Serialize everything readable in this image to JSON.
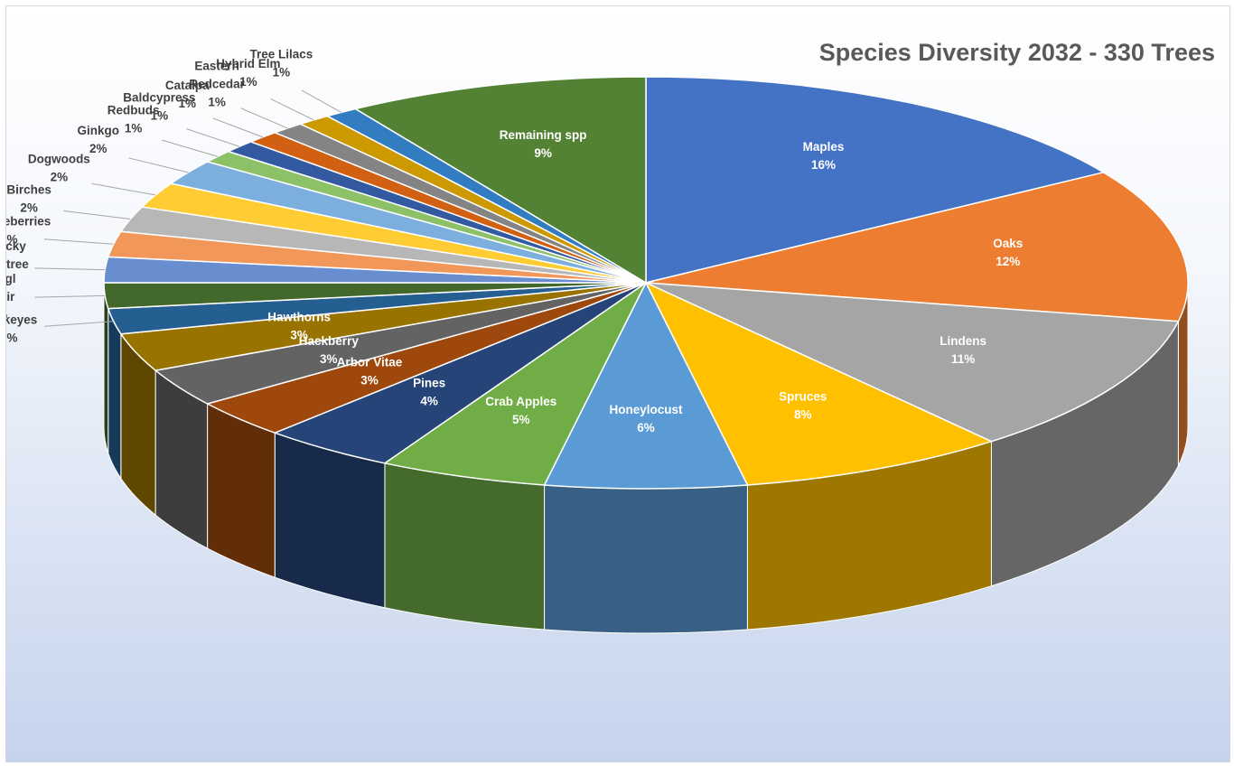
{
  "chart_data": {
    "type": "pie",
    "style": "3d-exploded-perspective",
    "title": "Species Diversity 2032 - 330 Trees",
    "legend": "none",
    "slices": [
      {
        "label": "Maples",
        "value_text": "16%",
        "value": 16,
        "color": "#4472c4",
        "label_position": "inside"
      },
      {
        "label": "Oaks",
        "value_text": "12%",
        "value": 12,
        "color": "#ed7d31",
        "label_position": "inside"
      },
      {
        "label": "Lindens",
        "value_text": "11%",
        "value": 11,
        "color": "#a5a5a5",
        "label_position": "inside"
      },
      {
        "label": "Spruces",
        "value_text": "8%",
        "value": 8,
        "color": "#ffc000",
        "label_position": "inside"
      },
      {
        "label": "Honeylocust",
        "value_text": "6%",
        "value": 6,
        "color": "#5b9bd5",
        "label_position": "inside"
      },
      {
        "label": "Crab Apples",
        "value_text": "5%",
        "value": 5,
        "color": "#70ad47",
        "label_position": "inside"
      },
      {
        "label": "Pines",
        "value_text": "4%",
        "value": 4,
        "color": "#264478",
        "label_position": "inside"
      },
      {
        "label": "Arbor Vitae",
        "value_text": "3%",
        "value": 3,
        "color": "#9e480e",
        "label_position": "inside"
      },
      {
        "label": "Hackberry",
        "value_text": "3%",
        "value": 3,
        "color": "#636363",
        "label_position": "inside"
      },
      {
        "label": "Hawthorns",
        "value_text": "3%",
        "value": 3,
        "color": "#997300",
        "label_position": "inside"
      },
      {
        "label": "Buckeyes",
        "value_text": "2%",
        "value": 2,
        "color": "#255e91",
        "label_position": "outside"
      },
      {
        "label": "Dougl\nas Fir",
        "value_text": "2%",
        "value": 2,
        "color": "#43682b",
        "label_position": "outside"
      },
      {
        "label": "Kentucky\nCoffeetree",
        "value_text": "2%",
        "value": 2,
        "color": "#698ed0",
        "label_position": "outside"
      },
      {
        "label": "Serviceberries",
        "value_text": "2%",
        "value": 2,
        "color": "#f1975a",
        "label_position": "outside"
      },
      {
        "label": "Birches",
        "value_text": "2%",
        "value": 2,
        "color": "#b7b7b7",
        "label_position": "outside"
      },
      {
        "label": "Dogwoods",
        "value_text": "2%",
        "value": 2,
        "color": "#ffcd33",
        "label_position": "outside"
      },
      {
        "label": "Ginkgo",
        "value_text": "2%",
        "value": 2,
        "color": "#7cafdd",
        "label_position": "outside"
      },
      {
        "label": "Redbuds",
        "value_text": "1%",
        "value": 1,
        "color": "#8cc168",
        "label_position": "outside"
      },
      {
        "label": "Baldcypress",
        "value_text": "1%",
        "value": 1,
        "color": "#335aa1",
        "label_position": "outside"
      },
      {
        "label": "Catalpa",
        "value_text": "1%",
        "value": 1,
        "color": "#d26012",
        "label_position": "outside"
      },
      {
        "label": "Eastern\nRedcedar",
        "value_text": "1%",
        "value": 1,
        "color": "#848484",
        "label_position": "outside"
      },
      {
        "label": "Hybrid Elm",
        "value_text": "1%",
        "value": 1,
        "color": "#cc9a00",
        "label_position": "outside"
      },
      {
        "label": "Tree Lilacs",
        "value_text": "1%",
        "value": 1,
        "color": "#327dc2",
        "label_position": "outside"
      },
      {
        "label": "Remaining spp",
        "value_text": "9%",
        "value": 9,
        "color": "#548235",
        "label_position": "inside"
      }
    ]
  }
}
